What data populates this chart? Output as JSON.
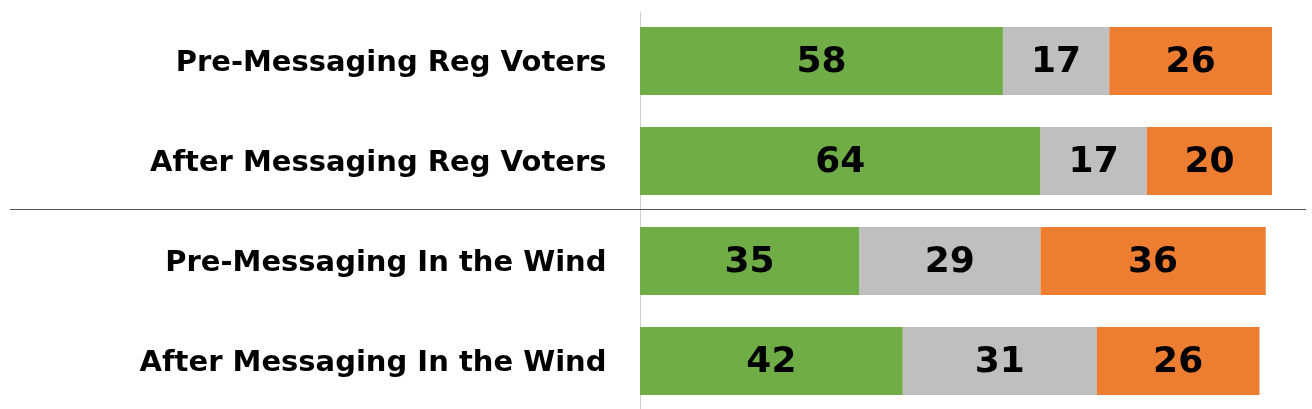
{
  "chart_data": {
    "type": "bar",
    "orientation": "horizontal",
    "stacked": true,
    "data_labels": true,
    "categories": [
      "Pre-Messaging Reg Voters",
      "After Messaging Reg Voters",
      "Pre-Messaging In the Wind",
      "After Messaging In the Wind"
    ],
    "series": [
      {
        "color": "#70ad47",
        "values": [
          58,
          64,
          35,
          42
        ]
      },
      {
        "color": "#bfbfbf",
        "values": [
          17,
          17,
          29,
          31
        ]
      },
      {
        "color": "#ed7d31",
        "values": [
          26,
          20,
          36,
          26
        ]
      }
    ]
  }
}
